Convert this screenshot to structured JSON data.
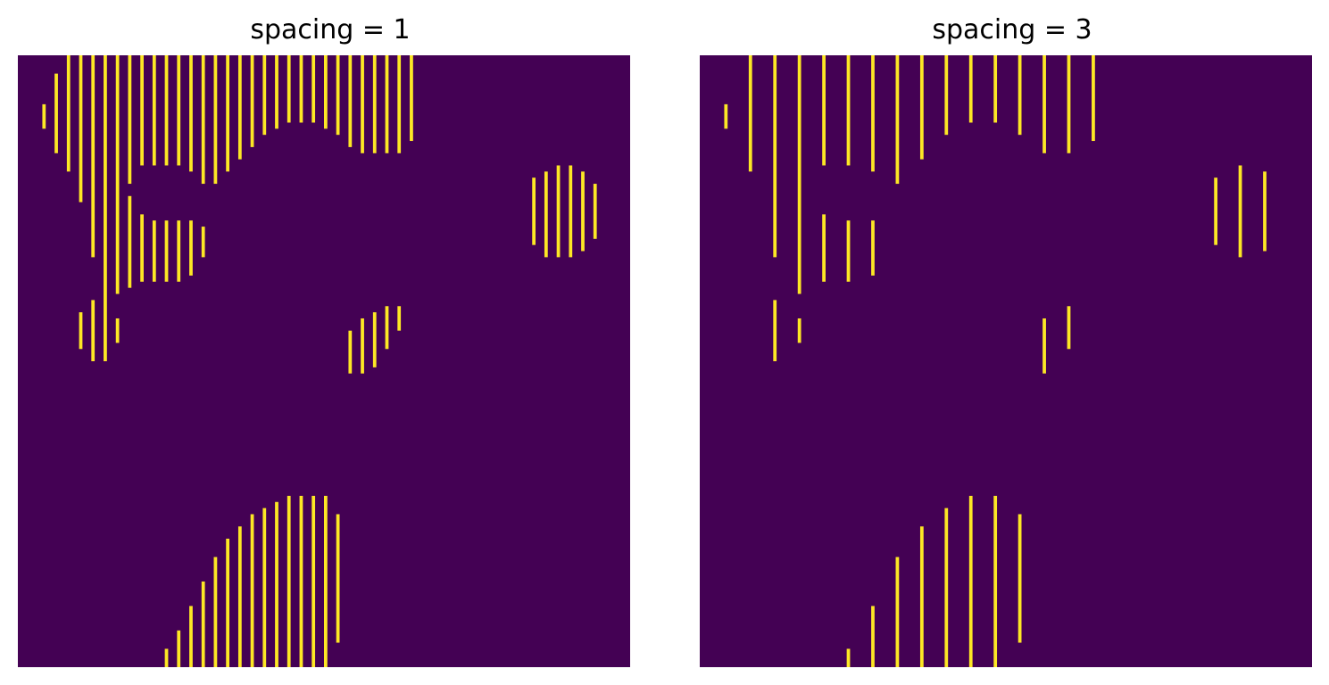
{
  "colors": {
    "background": "#440154",
    "stripe": "#fde725"
  },
  "chart_data": [
    {
      "type": "heatmap",
      "title": "spacing = 1",
      "axes_visible": false,
      "description_values": "binary mask of a smoothed noise field sampled along vertical stripes every 1 unit",
      "spacing": 1,
      "values": [
        0,
        1
      ]
    },
    {
      "type": "heatmap",
      "title": "spacing = 3",
      "axes_visible": false,
      "spacing": 3,
      "values": [
        0,
        1
      ]
    }
  ]
}
